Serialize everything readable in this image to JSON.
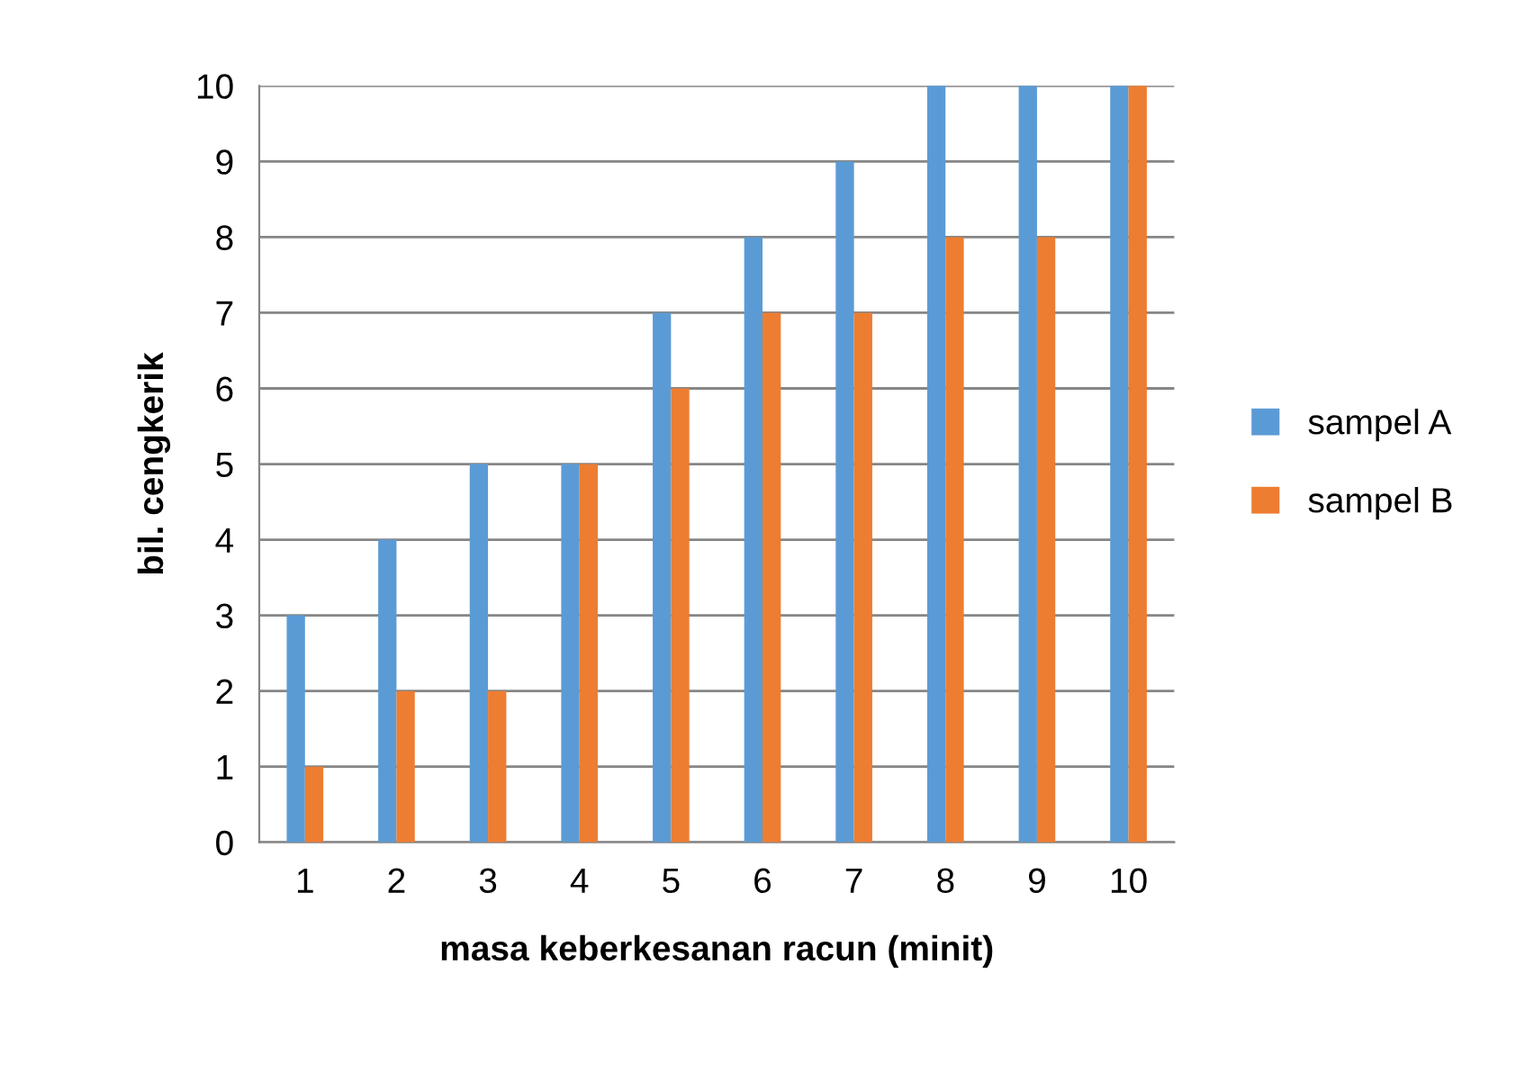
{
  "chart_data": {
    "type": "bar",
    "xlabel": "masa keberkesanan racun (minit)",
    "ylabel": "bil. cengkerik",
    "categories": [
      "1",
      "2",
      "3",
      "4",
      "5",
      "6",
      "7",
      "8",
      "9",
      "10"
    ],
    "series": [
      {
        "name": "sampel A",
        "color": "#5b9bd5",
        "values": [
          3,
          4,
          5,
          5,
          7,
          8,
          9,
          10,
          10,
          10
        ]
      },
      {
        "name": "sampel B",
        "color": "#ed7d31",
        "values": [
          1,
          2,
          2,
          5,
          6,
          7,
          7,
          8,
          8,
          10
        ]
      }
    ],
    "ylim": [
      0,
      10
    ],
    "yticks": [
      0,
      1,
      2,
      3,
      4,
      5,
      6,
      7,
      8,
      9,
      10
    ],
    "grid": "y",
    "legend": "right"
  }
}
